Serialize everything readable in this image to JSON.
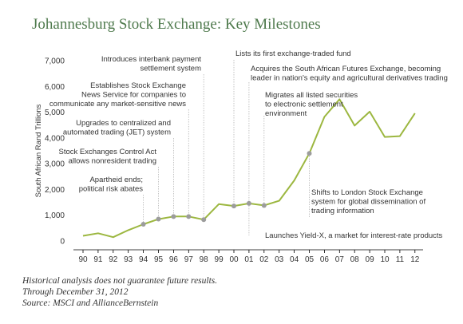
{
  "title": "Johannesburg Stock Exchange: Key Milestones",
  "colors": {
    "title": "#4f7a4d",
    "line": "#9cb740",
    "marker": "#9c9c9c",
    "leader": "#b5b5b5",
    "text": "#333333"
  },
  "notes": [
    "Historical analysis does not guarantee future results.",
    "Through December 31, 2012",
    "Source: MSCI and AllianceBernstein"
  ],
  "chart_data": {
    "type": "line",
    "title": "Johannesburg Stock Exchange: Key Milestones",
    "xlabel": "",
    "ylabel": "South African Rand Trillions",
    "ylim": [
      0,
      7000
    ],
    "yticks": [
      0,
      1000,
      2000,
      3000,
      4000,
      5000,
      6000,
      7000
    ],
    "ytick_labels": [
      "0",
      "1,000",
      "2,000",
      "3,000",
      "4,000",
      "5,000",
      "6,000",
      "7,000"
    ],
    "grid": false,
    "legend": "none",
    "x": [
      1990,
      1991,
      1992,
      1993,
      1994,
      1995,
      1996,
      1997,
      1998,
      1999,
      2000,
      2001,
      2002,
      2003,
      2004,
      2005,
      2006,
      2007,
      2008,
      2009,
      2010,
      2011,
      2012
    ],
    "xtick_labels": [
      "90",
      "91",
      "92",
      "93",
      "94",
      "95",
      "96",
      "97",
      "98",
      "99",
      "00",
      "01",
      "02",
      "03",
      "04",
      "05",
      "06",
      "07",
      "08",
      "09",
      "10",
      "11",
      "12"
    ],
    "series": [
      {
        "name": "",
        "values": [
          200,
          300,
          150,
          420,
          650,
          850,
          950,
          950,
          830,
          1430,
          1360,
          1460,
          1380,
          1560,
          2350,
          3400,
          4820,
          5500,
          4480,
          5020,
          4040,
          4070,
          4960
        ]
      }
    ],
    "annotations": [
      {
        "text": [
          "Apartheid ends;",
          "political risk abates"
        ],
        "x": 1994,
        "y": 650,
        "side": "left"
      },
      {
        "text": [
          "Stock Exchanges Control Act",
          "allows nonresident trading"
        ],
        "x": 1995,
        "y": 850,
        "side": "left"
      },
      {
        "text": [
          "Upgrades to centralized and",
          "automated trading (JET) system"
        ],
        "x": 1996,
        "y": 950,
        "side": "left"
      },
      {
        "text": [
          "Establishes Stock Exchange",
          "News Service for companies to",
          "communicate any market-sensitive news"
        ],
        "x": 1997,
        "y": 950,
        "side": "left"
      },
      {
        "text": [
          "Introduces interbank payment",
          "settlement system"
        ],
        "x": 1998,
        "y": 830,
        "side": "left"
      },
      {
        "text": [
          "Lists its first exchange-traded fund"
        ],
        "x": 2000,
        "y": 1360,
        "side": "right"
      },
      {
        "text": [
          "Acquires the South African Futures Exchange, becoming",
          "leader in nation's equity and agricultural derivatives trading"
        ],
        "x": 2001,
        "y": 1460,
        "side": "right"
      },
      {
        "text": [
          "Migrates all listed securities",
          "to electronic settlement",
          "environment"
        ],
        "x": 2002,
        "y": 1380,
        "side": "right"
      },
      {
        "text": [
          "Launches Yield-X, a market for interest-rate products"
        ],
        "x": 2001,
        "y": 1460,
        "side": "right"
      },
      {
        "text": [
          "Shifts to London Stock Exchange",
          "system for global dissemination of",
          "trading information"
        ],
        "x": 2005,
        "y": 3400,
        "side": "right"
      }
    ]
  }
}
